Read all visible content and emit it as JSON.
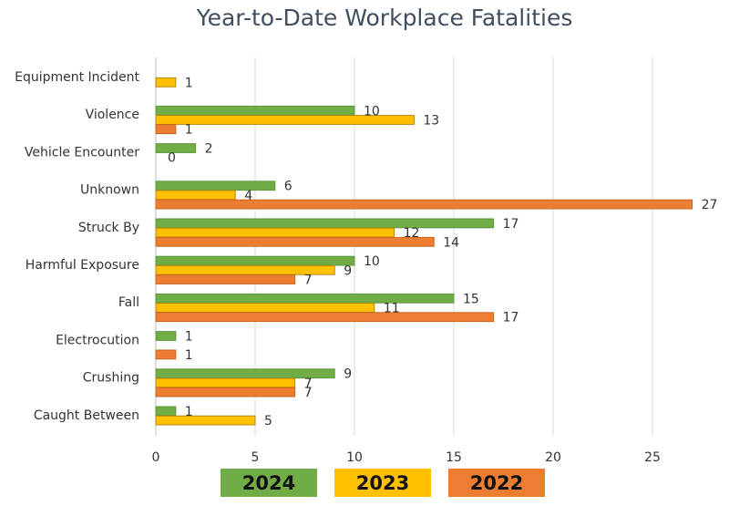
{
  "chart_data": {
    "type": "bar",
    "orientation": "horizontal",
    "title": "Year-to-Date Workplace Fatalities",
    "categories": [
      "Equipment Incident",
      "Violence",
      "Vehicle Encounter",
      "Unknown",
      "Struck By",
      "Harmful Exposure",
      "Fall",
      "Electrocution",
      "Crushing",
      "Caught Between"
    ],
    "series": [
      {
        "name": "2024",
        "color": "#70ad47",
        "values": [
          null,
          10,
          2,
          6,
          17,
          10,
          15,
          1,
          9,
          1
        ]
      },
      {
        "name": "2023",
        "color": "#ffc000",
        "values": [
          1,
          13,
          0,
          4,
          12,
          9,
          11,
          null,
          7,
          5
        ]
      },
      {
        "name": "2022",
        "color": "#ed7d31",
        "values": [
          null,
          1,
          null,
          27,
          14,
          7,
          17,
          1,
          7,
          null
        ]
      }
    ],
    "xlim": [
      0,
      27
    ],
    "xticks": [
      0,
      5,
      10,
      15,
      20,
      25
    ],
    "grid": true,
    "legend_position": "bottom"
  }
}
